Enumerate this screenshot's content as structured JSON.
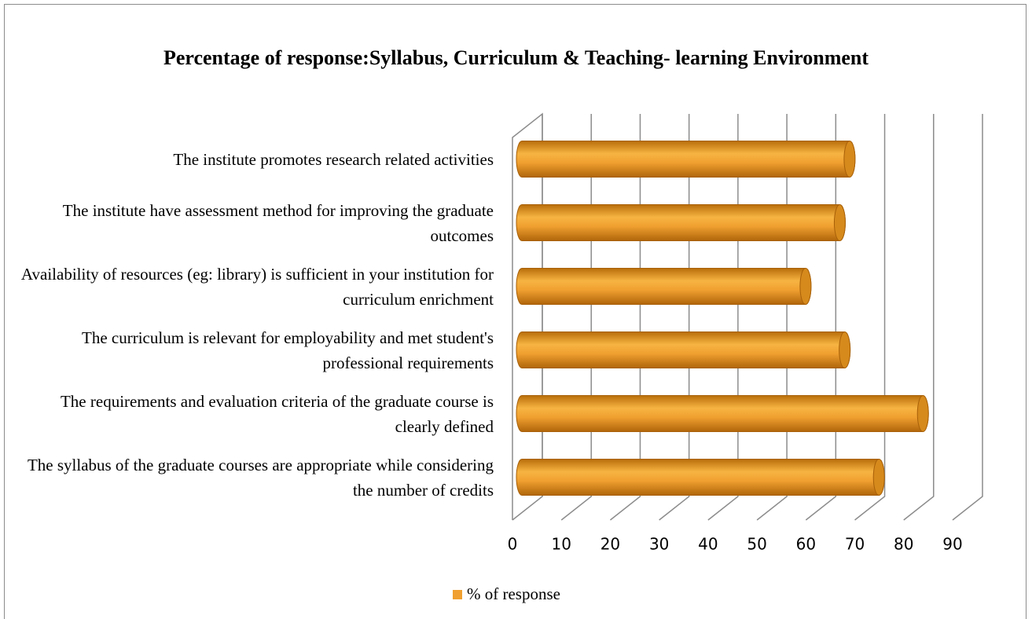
{
  "chart_data": {
    "type": "bar",
    "orientation": "horizontal",
    "title": "Percentage of response:Syllabus, Curriculum & Teaching- learning Environment",
    "categories": [
      "The syllabus of the graduate courses are appropriate while considering the number of credits",
      "The requirements and evaluation criteria of the graduate course is clearly defined",
      "The curriculum is relevant for employability and met student's professional requirements",
      "Availability of resources (eg: library) is sufficient in your institution for curriculum enrichment",
      "The institute have assessment method for improving the graduate outcomes",
      "The institute promotes research related activities"
    ],
    "series": [
      {
        "name": "% of response",
        "color": "#f0a030",
        "values": [
          73,
          82,
          66,
          58,
          65,
          67
        ]
      }
    ],
    "xlim": [
      0,
      90
    ],
    "xticks": [
      0,
      10,
      20,
      30,
      40,
      50,
      60,
      70,
      80,
      90
    ],
    "grid": true,
    "legend": "bottom"
  }
}
